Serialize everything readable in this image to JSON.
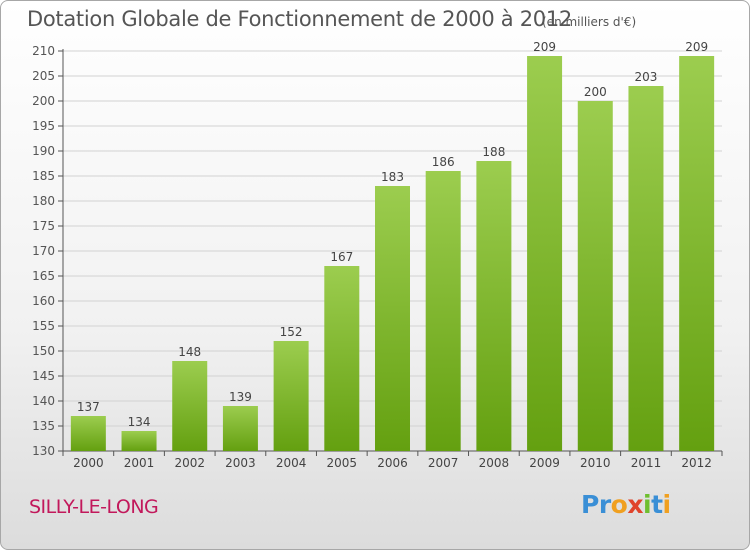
{
  "chart_data": {
    "type": "bar",
    "title": "Dotation Globale de Fonctionnement de 2000 à 2012",
    "subtitle": "(en milliers d'€)",
    "categories": [
      "2000",
      "2001",
      "2002",
      "2003",
      "2004",
      "2005",
      "2006",
      "2007",
      "2008",
      "2009",
      "2010",
      "2011",
      "2012"
    ],
    "values": [
      137,
      134,
      148,
      139,
      152,
      167,
      183,
      186,
      188,
      209,
      200,
      203,
      209
    ],
    "ylim": [
      130,
      210
    ],
    "yticks": [
      130,
      135,
      140,
      145,
      150,
      155,
      160,
      165,
      170,
      175,
      180,
      185,
      190,
      195,
      200,
      205,
      210
    ],
    "grid": true,
    "xlabel": "",
    "ylabel": "",
    "bar_color_top": "#9ccd4f",
    "bar_color_bottom": "#64a010"
  },
  "footer": {
    "commune": "SILLY-LE-LONG",
    "commune_color": "#c2185b"
  },
  "logo": {
    "letters": [
      {
        "char": "P",
        "color": "#3a8fd6"
      },
      {
        "char": "r",
        "color": "#3a8fd6"
      },
      {
        "char": "o",
        "color": "#f0a020"
      },
      {
        "char": "x",
        "color": "#e0442c"
      },
      {
        "char": "i",
        "color": "#6fbf30"
      },
      {
        "char": "t",
        "color": "#3a8fd6"
      },
      {
        "char": "i",
        "color": "#f0a020"
      }
    ]
  }
}
